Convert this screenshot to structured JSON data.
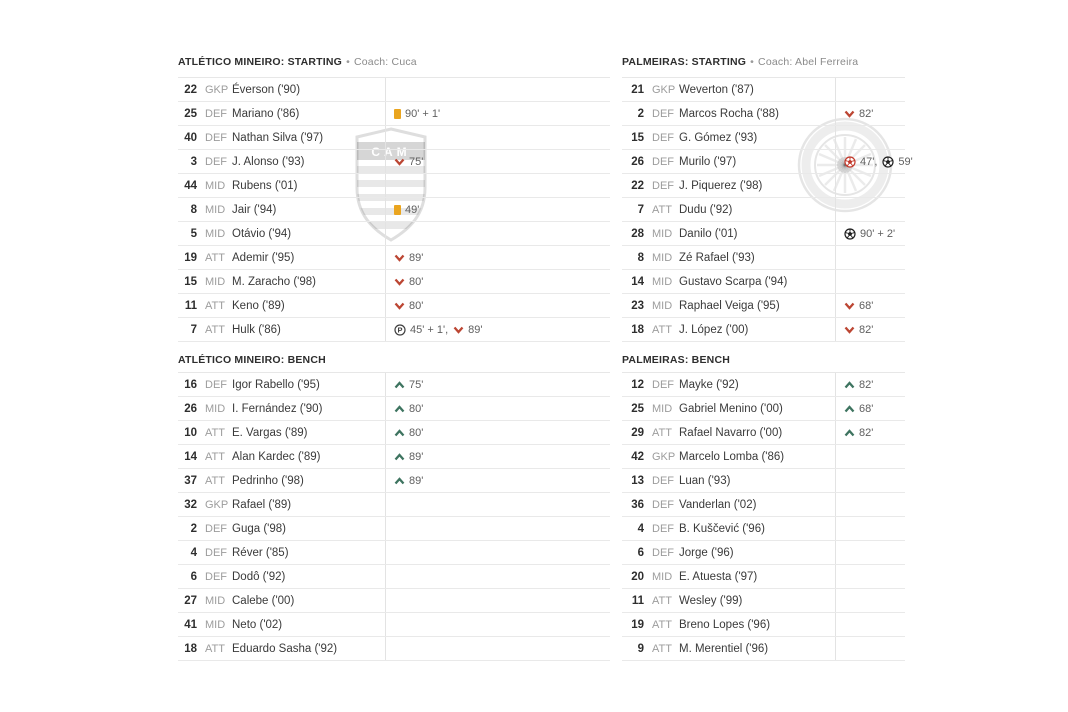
{
  "ui": {
    "bullet": "•",
    "colors": {
      "sub_on": "#3e7460",
      "sub_off": "#bc4633",
      "yellow_card": "#eaa51f",
      "goal": "#1f1f1f",
      "own_goal": "#c2392b",
      "penalty": "#3f3f3f"
    }
  },
  "watermarks": {
    "atletico_crest_text": "CAM"
  },
  "sections": [
    {
      "id": "atletico-starting",
      "title": "ATLÉTICO MINEIRO: STARTING",
      "coach": "Coach: Cuca",
      "players": [
        {
          "number": "22",
          "pos": "GKP",
          "name": "Éverson ('90)",
          "events": []
        },
        {
          "number": "25",
          "pos": "DEF",
          "name": "Mariano ('86)",
          "events": [
            {
              "type": "yellow-card",
              "minute": "90' + 1'"
            }
          ]
        },
        {
          "number": "40",
          "pos": "DEF",
          "name": "Nathan Silva ('97)",
          "events": []
        },
        {
          "number": "3",
          "pos": "DEF",
          "name": "J. Alonso ('93)",
          "events": [
            {
              "type": "sub-off",
              "minute": "75'"
            }
          ]
        },
        {
          "number": "44",
          "pos": "MID",
          "name": "Rubens ('01)",
          "events": []
        },
        {
          "number": "8",
          "pos": "MID",
          "name": "Jair ('94)",
          "events": [
            {
              "type": "yellow-card",
              "minute": "49'"
            }
          ]
        },
        {
          "number": "5",
          "pos": "MID",
          "name": "Otávio ('94)",
          "events": []
        },
        {
          "number": "19",
          "pos": "ATT",
          "name": "Ademir ('95)",
          "events": [
            {
              "type": "sub-off",
              "minute": "89'"
            }
          ]
        },
        {
          "number": "15",
          "pos": "MID",
          "name": "M. Zaracho ('98)",
          "events": [
            {
              "type": "sub-off",
              "minute": "80'"
            }
          ]
        },
        {
          "number": "11",
          "pos": "ATT",
          "name": "Keno ('89)",
          "events": [
            {
              "type": "sub-off",
              "minute": "80'"
            }
          ]
        },
        {
          "number": "7",
          "pos": "ATT",
          "name": "Hulk ('86)",
          "events": [
            {
              "type": "penalty-goal",
              "minute": "45' + 1',"
            },
            {
              "type": "sub-off",
              "minute": "89'"
            }
          ]
        }
      ]
    },
    {
      "id": "atletico-bench",
      "title": "ATLÉTICO MINEIRO: BENCH",
      "coach": null,
      "players": [
        {
          "number": "16",
          "pos": "DEF",
          "name": "Igor Rabello ('95)",
          "events": [
            {
              "type": "sub-on",
              "minute": "75'"
            }
          ]
        },
        {
          "number": "26",
          "pos": "MID",
          "name": "I. Fernández ('90)",
          "events": [
            {
              "type": "sub-on",
              "minute": "80'"
            }
          ]
        },
        {
          "number": "10",
          "pos": "ATT",
          "name": "E. Vargas ('89)",
          "events": [
            {
              "type": "sub-on",
              "minute": "80'"
            }
          ]
        },
        {
          "number": "14",
          "pos": "ATT",
          "name": "Alan Kardec ('89)",
          "events": [
            {
              "type": "sub-on",
              "minute": "89'"
            }
          ]
        },
        {
          "number": "37",
          "pos": "ATT",
          "name": "Pedrinho ('98)",
          "events": [
            {
              "type": "sub-on",
              "minute": "89'"
            }
          ]
        },
        {
          "number": "32",
          "pos": "GKP",
          "name": "Rafael ('89)",
          "events": []
        },
        {
          "number": "2",
          "pos": "DEF",
          "name": "Guga ('98)",
          "events": []
        },
        {
          "number": "4",
          "pos": "DEF",
          "name": "Réver ('85)",
          "events": []
        },
        {
          "number": "6",
          "pos": "DEF",
          "name": "Dodô ('92)",
          "events": []
        },
        {
          "number": "27",
          "pos": "MID",
          "name": "Calebe ('00)",
          "events": []
        },
        {
          "number": "41",
          "pos": "MID",
          "name": "Neto ('02)",
          "events": []
        },
        {
          "number": "18",
          "pos": "ATT",
          "name": "Eduardo Sasha ('92)",
          "events": []
        }
      ]
    },
    {
      "id": "palmeiras-starting",
      "title": "PALMEIRAS: STARTING",
      "coach": "Coach: Abel Ferreira",
      "players": [
        {
          "number": "21",
          "pos": "GKP",
          "name": "Weverton ('87)",
          "events": []
        },
        {
          "number": "2",
          "pos": "DEF",
          "name": "Marcos Rocha ('88)",
          "events": [
            {
              "type": "sub-off",
              "minute": "82'"
            }
          ]
        },
        {
          "number": "15",
          "pos": "DEF",
          "name": "G. Gómez ('93)",
          "events": []
        },
        {
          "number": "26",
          "pos": "DEF",
          "name": "Murilo ('97)",
          "events": [
            {
              "type": "own-goal",
              "minute": "47',"
            },
            {
              "type": "goal",
              "minute": "59'"
            }
          ]
        },
        {
          "number": "22",
          "pos": "DEF",
          "name": "J. Piquerez ('98)",
          "events": []
        },
        {
          "number": "7",
          "pos": "ATT",
          "name": "Dudu ('92)",
          "events": []
        },
        {
          "number": "28",
          "pos": "MID",
          "name": "Danilo ('01)",
          "events": [
            {
              "type": "goal",
              "minute": "90' + 2'"
            }
          ]
        },
        {
          "number": "8",
          "pos": "MID",
          "name": "Zé Rafael ('93)",
          "events": []
        },
        {
          "number": "14",
          "pos": "MID",
          "name": "Gustavo Scarpa ('94)",
          "events": []
        },
        {
          "number": "23",
          "pos": "MID",
          "name": "Raphael Veiga ('95)",
          "events": [
            {
              "type": "sub-off",
              "minute": "68'"
            }
          ]
        },
        {
          "number": "18",
          "pos": "ATT",
          "name": "J. López ('00)",
          "events": [
            {
              "type": "sub-off",
              "minute": "82'"
            }
          ]
        }
      ]
    },
    {
      "id": "palmeiras-bench",
      "title": "PALMEIRAS: BENCH",
      "coach": null,
      "players": [
        {
          "number": "12",
          "pos": "DEF",
          "name": "Mayke ('92)",
          "events": [
            {
              "type": "sub-on",
              "minute": "82'"
            }
          ]
        },
        {
          "number": "25",
          "pos": "MID",
          "name": "Gabriel Menino ('00)",
          "events": [
            {
              "type": "sub-on",
              "minute": "68'"
            }
          ]
        },
        {
          "number": "29",
          "pos": "ATT",
          "name": "Rafael Navarro ('00)",
          "events": [
            {
              "type": "sub-on",
              "minute": "82'"
            }
          ]
        },
        {
          "number": "42",
          "pos": "GKP",
          "name": "Marcelo Lomba ('86)",
          "events": []
        },
        {
          "number": "13",
          "pos": "DEF",
          "name": "Luan ('93)",
          "events": []
        },
        {
          "number": "36",
          "pos": "DEF",
          "name": "Vanderlan ('02)",
          "events": []
        },
        {
          "number": "4",
          "pos": "DEF",
          "name": "B. Kuščević ('96)",
          "events": []
        },
        {
          "number": "6",
          "pos": "DEF",
          "name": "Jorge ('96)",
          "events": []
        },
        {
          "number": "20",
          "pos": "MID",
          "name": "E. Atuesta ('97)",
          "events": []
        },
        {
          "number": "11",
          "pos": "ATT",
          "name": "Wesley ('99)",
          "events": []
        },
        {
          "number": "19",
          "pos": "ATT",
          "name": "Breno Lopes ('96)",
          "events": []
        },
        {
          "number": "9",
          "pos": "ATT",
          "name": "M. Merentiel ('96)",
          "events": []
        }
      ]
    }
  ]
}
